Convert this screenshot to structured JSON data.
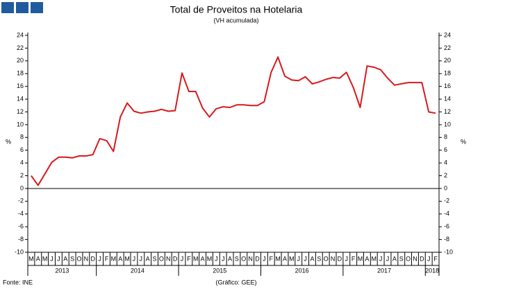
{
  "chart_data": {
    "type": "line",
    "title": "Total de Proveitos na Hotelaria",
    "subtitle": "(VH acumulada)",
    "y_label": "%",
    "y2_label": "%",
    "source": "Fonte: INE",
    "credit": "(Gráfico: GEE)",
    "color": "#d7191c",
    "category_groups": [
      {
        "label": "2013",
        "months": [
          "M",
          "A",
          "M",
          "J",
          "J",
          "A",
          "S",
          "O",
          "N",
          "D"
        ]
      },
      {
        "label": "2014",
        "months": [
          "J",
          "F",
          "M",
          "A",
          "M",
          "J",
          "J",
          "A",
          "S",
          "O",
          "N",
          "D"
        ]
      },
      {
        "label": "2015",
        "months": [
          "J",
          "F",
          "M",
          "A",
          "M",
          "J",
          "J",
          "A",
          "S",
          "O",
          "N",
          "D"
        ]
      },
      {
        "label": "2016",
        "months": [
          "J",
          "F",
          "M",
          "A",
          "M",
          "J",
          "J",
          "A",
          "S",
          "O",
          "N",
          "D"
        ]
      },
      {
        "label": "2017",
        "months": [
          "J",
          "F",
          "M",
          "A",
          "M",
          "J",
          "J",
          "A",
          "S",
          "O",
          "N",
          "D"
        ]
      },
      {
        "label": "2018",
        "months": [
          "J",
          "F"
        ]
      }
    ],
    "values": [
      2.0,
      0.5,
      2.3,
      4.1,
      4.9,
      4.9,
      4.8,
      5.1,
      5.1,
      5.3,
      7.8,
      7.5,
      5.8,
      11.2,
      13.4,
      12.1,
      11.8,
      12.0,
      12.1,
      12.4,
      12.1,
      12.2,
      18.1,
      15.2,
      15.2,
      12.6,
      11.2,
      12.5,
      12.8,
      12.7,
      13.1,
      13.1,
      13.0,
      13.0,
      13.6,
      18.2,
      20.6,
      17.6,
      17.0,
      16.9,
      17.5,
      16.4,
      16.7,
      17.1,
      17.4,
      17.3,
      18.2,
      15.8,
      12.7,
      19.2,
      19.0,
      18.6,
      17.3,
      16.2,
      16.4,
      16.6,
      16.6,
      16.6,
      12.0,
      11.8
    ],
    "ylim": [
      -10,
      24
    ],
    "yticks": [
      -10,
      -8,
      -6,
      -4,
      -2,
      0,
      2,
      4,
      6,
      8,
      10,
      12,
      14,
      16,
      18,
      20,
      22,
      24
    ]
  }
}
